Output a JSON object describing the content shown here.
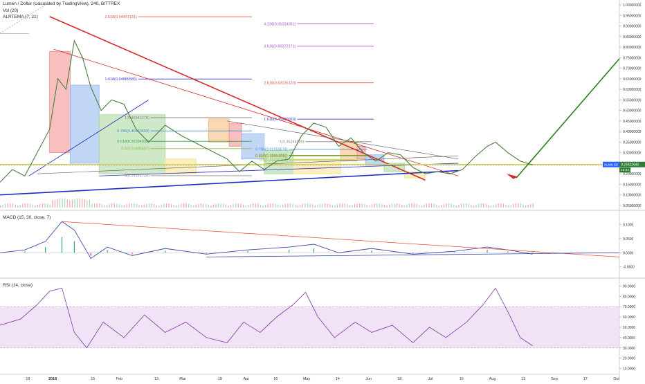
{
  "header": {
    "title": "Lumen / Dollar (calculated by TradingView), 240, BITTREX",
    "vol_label": "Vol (20)",
    "ema_label": "ALRTEMA (7, 21)",
    "macd_label": "MACD (15, 30, close, 7)",
    "rsi_label": "RSI (14, close)"
  },
  "colors": {
    "up": "#35a853",
    "down": "#e63946",
    "support_line": "#1f2cc4",
    "resistance_line": "#d42a2a",
    "breakout_arrow": "#2e7d1f",
    "rsi_band": "#e9d9f2",
    "rsi_line": "#8e44ad"
  },
  "chart_data": [
    {
      "type": "line",
      "title": "Lumen / Dollar (calculated by TradingView), 240, BITTREX",
      "x_ticks": [
        "18",
        "2018",
        "15",
        "Feb",
        "13",
        "Mar",
        "19",
        "Apr",
        "16",
        "May",
        "14",
        "Jun",
        "18",
        "Jul",
        "16",
        "Aug",
        "13",
        "Sep",
        "17",
        "Oct"
      ],
      "y_ticks": [
        1.0,
        0.95,
        0.9,
        0.85,
        0.8,
        0.75,
        0.7,
        0.65,
        0.6,
        0.55,
        0.5,
        0.45,
        0.4,
        0.35,
        0.3,
        0.25,
        0.2,
        0.15,
        0.1,
        0.05
      ],
      "ylim": [
        0.04,
        1.01
      ],
      "price_series": [
        {
          "t": 0,
          "p": 0.16
        },
        {
          "t": 6,
          "p": 0.22
        },
        {
          "t": 12,
          "p": 0.19
        },
        {
          "t": 18,
          "p": 0.3
        },
        {
          "t": 24,
          "p": 0.41
        },
        {
          "t": 28,
          "p": 0.65
        },
        {
          "t": 32,
          "p": 0.6
        },
        {
          "t": 36,
          "p": 0.83
        },
        {
          "t": 40,
          "p": 0.75
        },
        {
          "t": 44,
          "p": 0.61
        },
        {
          "t": 49,
          "p": 0.5
        },
        {
          "t": 54,
          "p": 0.55
        },
        {
          "t": 60,
          "p": 0.53
        },
        {
          "t": 66,
          "p": 0.41
        },
        {
          "t": 72,
          "p": 0.35
        },
        {
          "t": 80,
          "p": 0.43
        },
        {
          "t": 88,
          "p": 0.38
        },
        {
          "t": 96,
          "p": 0.34
        },
        {
          "t": 104,
          "p": 0.3
        },
        {
          "t": 110,
          "p": 0.27
        },
        {
          "t": 116,
          "p": 0.21
        },
        {
          "t": 122,
          "p": 0.26
        },
        {
          "t": 128,
          "p": 0.22
        },
        {
          "t": 134,
          "p": 0.26
        },
        {
          "t": 140,
          "p": 0.27
        },
        {
          "t": 146,
          "p": 0.38
        },
        {
          "t": 152,
          "p": 0.44
        },
        {
          "t": 158,
          "p": 0.42
        },
        {
          "t": 164,
          "p": 0.33
        },
        {
          "t": 170,
          "p": 0.37
        },
        {
          "t": 176,
          "p": 0.3
        },
        {
          "t": 182,
          "p": 0.26
        },
        {
          "t": 188,
          "p": 0.3
        },
        {
          "t": 194,
          "p": 0.29
        },
        {
          "t": 200,
          "p": 0.23
        },
        {
          "t": 206,
          "p": 0.2
        },
        {
          "t": 212,
          "p": 0.21
        },
        {
          "t": 218,
          "p": 0.2
        },
        {
          "t": 224,
          "p": 0.22
        },
        {
          "t": 230,
          "p": 0.28
        },
        {
          "t": 236,
          "p": 0.33
        },
        {
          "t": 240,
          "p": 0.35
        },
        {
          "t": 246,
          "p": 0.3
        },
        {
          "t": 252,
          "p": 0.26
        },
        {
          "t": 258,
          "p": 0.242
        }
      ],
      "current_price": "0.24422640",
      "countdown": "16:44",
      "symbol_badge": "XLMUSD",
      "fib_levels": [
        {
          "label": "2.618(0.94407131)",
          "value": 0.944,
          "color": "#e05050"
        },
        {
          "label": "4.236(0.91024051)",
          "value": 0.91,
          "color": "#b04ad6"
        },
        {
          "label": "3.618(0.80372171)",
          "value": 0.804,
          "color": "#b04ad6"
        },
        {
          "label": "1.618(0.64885585)",
          "value": 0.649,
          "color": "#3a3ad0"
        },
        {
          "label": "2.618(0.63136120)",
          "value": 0.631,
          "color": "#e05050"
        },
        {
          "label": "1(0.46641270)",
          "value": 0.466,
          "color": "#888888"
        },
        {
          "label": "1.618(0.45900069)",
          "value": 0.459,
          "color": "#3a3ad0"
        },
        {
          "label": "0.786(0.40323659)",
          "value": 0.403,
          "color": "#3a8fd0"
        },
        {
          "label": "0.618(0.35364039)",
          "value": 0.354,
          "color": "#2eaa4a"
        },
        {
          "label": "1(0.35248189)",
          "value": 0.352,
          "color": "#888888"
        },
        {
          "label": "0.5(0.31880497)",
          "value": 0.319,
          "color": "#8ac23a"
        },
        {
          "label": "0.786(0.31559674)",
          "value": 0.316,
          "color": "#3a8fd0"
        },
        {
          "label": "0.618(0.28664918)",
          "value": 0.287,
          "color": "#2eaa4a"
        },
        {
          "label": "0.382(0.28396955)",
          "value": 0.284,
          "color": "#d4a22a"
        },
        {
          "label": "0.5(0.26630164)",
          "value": 0.266,
          "color": "#8ac23a"
        },
        {
          "label": "0(0.19131724)",
          "value": 0.191,
          "color": "#888888"
        }
      ]
    },
    {
      "type": "line",
      "title": "MACD (15, 30, close, 7)",
      "y_ticks": [
        0.1,
        0.05,
        0,
        -0.05
      ],
      "ylim": [
        -0.08,
        0.14
      ],
      "macd_series": [
        {
          "t": 0,
          "v": 0.0
        },
        {
          "t": 12,
          "v": 0.01
        },
        {
          "t": 22,
          "v": 0.04
        },
        {
          "t": 30,
          "v": 0.11
        },
        {
          "t": 36,
          "v": 0.08
        },
        {
          "t": 44,
          "v": -0.02
        },
        {
          "t": 52,
          "v": 0.02
        },
        {
          "t": 64,
          "v": -0.01
        },
        {
          "t": 80,
          "v": 0.015
        },
        {
          "t": 100,
          "v": -0.005
        },
        {
          "t": 120,
          "v": 0.01
        },
        {
          "t": 140,
          "v": 0.02
        },
        {
          "t": 152,
          "v": 0.03
        },
        {
          "t": 164,
          "v": 0.0
        },
        {
          "t": 180,
          "v": 0.015
        },
        {
          "t": 200,
          "v": -0.005
        },
        {
          "t": 220,
          "v": 0.005
        },
        {
          "t": 236,
          "v": 0.02
        },
        {
          "t": 246,
          "v": 0.01
        },
        {
          "t": 258,
          "v": -0.005
        }
      ]
    },
    {
      "type": "line",
      "title": "RSI (14, close)",
      "y_ticks": [
        90,
        80,
        70,
        60,
        50,
        40,
        30,
        20,
        10
      ],
      "ylim": [
        5,
        95
      ],
      "rsi_series": [
        {
          "t": 0,
          "v": 52
        },
        {
          "t": 10,
          "v": 58
        },
        {
          "t": 18,
          "v": 72
        },
        {
          "t": 24,
          "v": 85
        },
        {
          "t": 30,
          "v": 88
        },
        {
          "t": 36,
          "v": 45
        },
        {
          "t": 42,
          "v": 30
        },
        {
          "t": 50,
          "v": 55
        },
        {
          "t": 60,
          "v": 40
        },
        {
          "t": 70,
          "v": 62
        },
        {
          "t": 80,
          "v": 45
        },
        {
          "t": 90,
          "v": 55
        },
        {
          "t": 100,
          "v": 40
        },
        {
          "t": 110,
          "v": 35
        },
        {
          "t": 118,
          "v": 55
        },
        {
          "t": 126,
          "v": 45
        },
        {
          "t": 134,
          "v": 60
        },
        {
          "t": 142,
          "v": 72
        },
        {
          "t": 148,
          "v": 84
        },
        {
          "t": 154,
          "v": 60
        },
        {
          "t": 162,
          "v": 40
        },
        {
          "t": 172,
          "v": 55
        },
        {
          "t": 180,
          "v": 45
        },
        {
          "t": 190,
          "v": 52
        },
        {
          "t": 200,
          "v": 35
        },
        {
          "t": 208,
          "v": 50
        },
        {
          "t": 216,
          "v": 40
        },
        {
          "t": 226,
          "v": 55
        },
        {
          "t": 234,
          "v": 72
        },
        {
          "t": 240,
          "v": 88
        },
        {
          "t": 246,
          "v": 65
        },
        {
          "t": 252,
          "v": 40
        },
        {
          "t": 258,
          "v": 32
        }
      ]
    }
  ]
}
